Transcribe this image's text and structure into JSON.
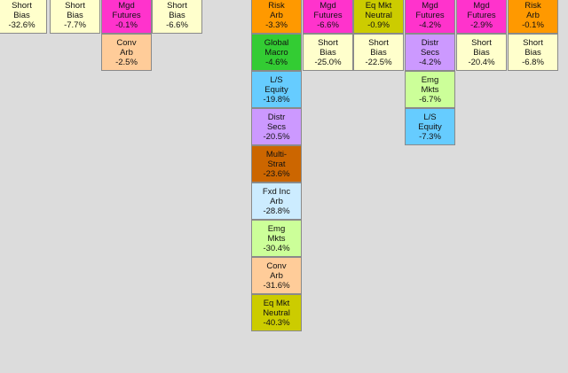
{
  "colors": {
    "Short Bias": "#ffffcc",
    "Mgd Futures": "#ff33cc",
    "Conv Arb": "#ffcc99",
    "Risk Arb": "#ff9900",
    "Eq Mkt Neutral": "#cccc00",
    "Global Macro": "#33cc33",
    "L/S Equity": "#66ccff",
    "Distr Secs": "#cc99ff",
    "Multi-Strat": "#cc6600",
    "Fxd Inc Arb": "#ccecff",
    "Emg Mkts": "#ccff99"
  },
  "chart_data": {
    "type": "table",
    "columns": [
      {
        "cells": [
          {
            "category": "Short Bias",
            "label": [
              "Short",
              "Bias"
            ],
            "value": "-32.6%"
          }
        ]
      },
      {
        "cells": [
          {
            "category": "Short Bias",
            "label": [
              "Short",
              "Bias"
            ],
            "value": "-7.7%"
          }
        ]
      },
      {
        "cells": [
          {
            "category": "Mgd Futures",
            "label": [
              "Mgd",
              "Futures"
            ],
            "value": "-0.1%"
          },
          {
            "category": "Conv Arb",
            "label": [
              "Conv",
              "Arb"
            ],
            "value": "-2.5%"
          }
        ]
      },
      {
        "cells": [
          {
            "category": "Short Bias",
            "label": [
              "Short",
              "Bias"
            ],
            "value": "-6.6%"
          }
        ]
      },
      {
        "cells": []
      },
      {
        "cells": []
      },
      {
        "cells": [
          {
            "category": "Risk Arb",
            "label": [
              "Risk",
              "Arb"
            ],
            "value": "-3.3%"
          },
          {
            "category": "Global Macro",
            "label": [
              "Global",
              "Macro"
            ],
            "value": "-4.6%"
          },
          {
            "category": "L/S Equity",
            "label": [
              "L/S",
              "Equity"
            ],
            "value": "-19.8%"
          },
          {
            "category": "Distr Secs",
            "label": [
              "Distr",
              "Secs"
            ],
            "value": "-20.5%"
          },
          {
            "category": "Multi-Strat",
            "label": [
              "Multi-",
              "Strat"
            ],
            "value": "-23.6%"
          },
          {
            "category": "Fxd Inc Arb",
            "label": [
              "Fxd Inc",
              "Arb"
            ],
            "value": "-28.8%"
          },
          {
            "category": "Emg Mkts",
            "label": [
              "Emg",
              "Mkts"
            ],
            "value": "-30.4%"
          },
          {
            "category": "Conv Arb",
            "label": [
              "Conv",
              "Arb"
            ],
            "value": "-31.6%"
          },
          {
            "category": "Eq Mkt Neutral",
            "label": [
              "Eq Mkt",
              "Neutral"
            ],
            "value": "-40.3%"
          }
        ]
      },
      {
        "cells": [
          {
            "category": "Mgd Futures",
            "label": [
              "Mgd",
              "Futures"
            ],
            "value": "-6.6%"
          },
          {
            "category": "Short Bias",
            "label": [
              "Short",
              "Bias"
            ],
            "value": "-25.0%"
          }
        ]
      },
      {
        "cells": [
          {
            "category": "Eq Mkt Neutral",
            "label": [
              "Eq Mkt",
              "Neutral"
            ],
            "value": "-0.9%"
          },
          {
            "category": "Short Bias",
            "label": [
              "Short",
              "Bias"
            ],
            "value": "-22.5%"
          }
        ]
      },
      {
        "cells": [
          {
            "category": "Mgd Futures",
            "label": [
              "Mgd",
              "Futures"
            ],
            "value": "-4.2%"
          },
          {
            "category": "Distr Secs",
            "label": [
              "Distr",
              "Secs"
            ],
            "value": "-4.2%"
          },
          {
            "category": "Emg Mkts",
            "label": [
              "Emg",
              "Mkts"
            ],
            "value": "-6.7%"
          },
          {
            "category": "L/S Equity",
            "label": [
              "L/S",
              "Equity"
            ],
            "value": "-7.3%"
          }
        ]
      },
      {
        "cells": [
          {
            "category": "Mgd Futures",
            "label": [
              "Mgd",
              "Futures"
            ],
            "value": "-2.9%"
          },
          {
            "category": "Short Bias",
            "label": [
              "Short",
              "Bias"
            ],
            "value": "-20.4%"
          }
        ]
      },
      {
        "cells": [
          {
            "category": "Risk Arb",
            "label": [
              "Risk",
              "Arb"
            ],
            "value": "-0.1%"
          },
          {
            "category": "Short Bias",
            "label": [
              "Short",
              "Bias"
            ],
            "value": "-6.8%"
          }
        ]
      }
    ]
  }
}
